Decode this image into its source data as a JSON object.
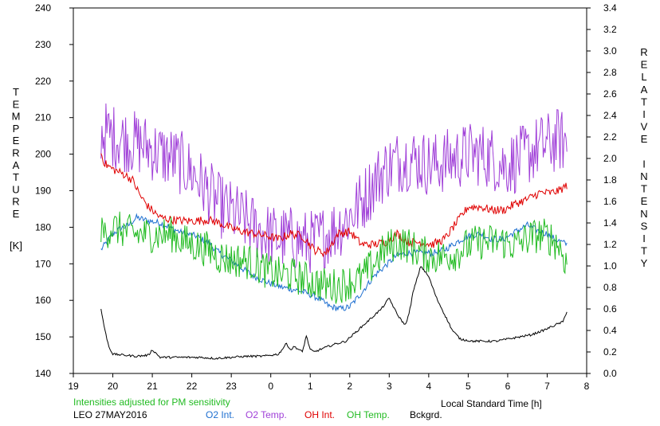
{
  "chart_data": {
    "type": "line",
    "xlabel": "Local Standard Time [h]",
    "ylabel_left_letters": [
      "T",
      "E",
      "M",
      "P",
      "E",
      "R",
      "A",
      "T",
      "U",
      "R",
      "E"
    ],
    "ylabel_left_unit": "[K]",
    "ylabel_right_words": [
      [
        "R",
        "E",
        "L",
        "A",
        "T",
        "I",
        "V",
        "E"
      ],
      [
        "I",
        "N",
        "T",
        "E",
        "N",
        "S",
        "I",
        "T",
        "Y"
      ]
    ],
    "note": "Intensities adjusted for PM sensitivity",
    "station": "LEO 27MAY2016",
    "x_ticks": [
      19,
      20,
      21,
      22,
      23,
      0,
      1,
      2,
      3,
      4,
      5,
      6,
      7,
      8
    ],
    "xlim": [
      19,
      32
    ],
    "ylim_left": [
      140,
      240
    ],
    "ylim_right": [
      0.0,
      3.4
    ],
    "y_ticks_left": [
      140,
      150,
      160,
      170,
      180,
      190,
      200,
      210,
      220,
      230,
      240
    ],
    "y_ticks_right": [
      "0.0",
      "0.2",
      "0.4",
      "0.6",
      "0.8",
      "1.0",
      "1.2",
      "1.4",
      "1.6",
      "1.8",
      "2.0",
      "2.2",
      "2.4",
      "2.6",
      "2.8",
      "3.0",
      "3.2",
      "3.4"
    ],
    "series": [
      {
        "name": "O2 Int.",
        "color": "#1e6fd0",
        "axis": "right",
        "noise": 0.03,
        "x": [
          19.7,
          20.0,
          20.2,
          20.4,
          20.6,
          20.9,
          21.2,
          21.5,
          21.8,
          22.1,
          22.4,
          22.7,
          23.0,
          23.3,
          23.6,
          23.9,
          24.3,
          24.6,
          24.9,
          25.2,
          25.5,
          25.8,
          26.0,
          26.3,
          26.6,
          26.9,
          27.2,
          27.5,
          27.8,
          28.1,
          28.4,
          28.7,
          29.0,
          29.3,
          29.6,
          29.9,
          30.2,
          30.5,
          30.8,
          31.0,
          31.2,
          31.5
        ],
        "y": [
          1.15,
          1.3,
          1.35,
          1.38,
          1.45,
          1.42,
          1.4,
          1.35,
          1.3,
          1.28,
          1.22,
          1.12,
          1.05,
          0.97,
          0.9,
          0.85,
          0.8,
          0.78,
          0.75,
          0.7,
          0.62,
          0.6,
          0.62,
          0.75,
          0.9,
          1.0,
          1.1,
          1.12,
          1.12,
          1.12,
          1.15,
          1.22,
          1.28,
          1.3,
          1.25,
          1.25,
          1.32,
          1.38,
          1.32,
          1.3,
          1.25,
          1.2
        ]
      },
      {
        "name": "O2 Temp.",
        "color": "#a040d8",
        "axis": "left",
        "noise": 9,
        "x": [
          19.7,
          20.0,
          20.3,
          20.6,
          20.9,
          21.2,
          21.5,
          21.8,
          22.1,
          22.4,
          22.7,
          23.0,
          23.3,
          23.6,
          23.9,
          24.2,
          24.5,
          24.8,
          25.1,
          25.4,
          25.7,
          26.0,
          26.3,
          26.6,
          26.9,
          27.2,
          27.5,
          27.8,
          28.1,
          28.4,
          28.7,
          29.0,
          29.3,
          29.6,
          29.9,
          30.2,
          30.5,
          30.8,
          31.1,
          31.3,
          31.5
        ],
        "y": [
          206,
          205,
          204,
          203,
          202,
          200,
          199,
          197,
          194,
          190,
          186,
          184,
          182,
          180,
          178,
          177,
          177,
          176,
          176,
          178,
          180,
          183,
          187,
          192,
          196,
          198,
          199,
          198,
          197,
          198,
          199,
          200,
          200,
          199,
          197,
          198,
          200,
          202,
          203,
          204,
          203
        ]
      },
      {
        "name": "OH Int.",
        "color": "#e00000",
        "axis": "right",
        "noise": 0.04,
        "x": [
          19.7,
          19.8,
          20.0,
          20.3,
          20.5,
          20.7,
          20.9,
          21.2,
          21.5,
          21.8,
          22.1,
          22.4,
          22.7,
          23.0,
          23.3,
          23.6,
          23.9,
          24.2,
          24.5,
          24.8,
          25.1,
          25.4,
          25.7,
          26.0,
          26.3,
          26.6,
          26.9,
          27.2,
          27.5,
          27.8,
          28.1,
          28.4,
          28.7,
          29.0,
          29.3,
          29.6,
          29.9,
          30.2,
          30.5,
          30.8,
          31.1,
          31.3,
          31.5
        ],
        "y": [
          2.05,
          1.95,
          1.9,
          1.85,
          1.8,
          1.65,
          1.55,
          1.45,
          1.43,
          1.42,
          1.42,
          1.43,
          1.4,
          1.35,
          1.32,
          1.3,
          1.28,
          1.25,
          1.3,
          1.28,
          1.15,
          1.12,
          1.3,
          1.32,
          1.2,
          1.2,
          1.22,
          1.3,
          1.22,
          1.22,
          1.2,
          1.25,
          1.4,
          1.55,
          1.55,
          1.52,
          1.52,
          1.58,
          1.62,
          1.68,
          1.68,
          1.7,
          1.75
        ]
      },
      {
        "name": "OH Temp.",
        "color": "#22bb22",
        "axis": "left",
        "noise": 5,
        "x": [
          19.7,
          20.0,
          20.3,
          20.6,
          20.9,
          21.2,
          21.5,
          21.8,
          22.1,
          22.4,
          22.7,
          23.0,
          23.3,
          23.6,
          23.9,
          24.2,
          24.5,
          24.8,
          25.1,
          25.4,
          25.7,
          26.0,
          26.3,
          26.6,
          26.9,
          27.2,
          27.5,
          27.8,
          28.1,
          28.4,
          28.7,
          29.0,
          29.3,
          29.6,
          29.9,
          30.2,
          30.5,
          30.8,
          31.1,
          31.3,
          31.5
        ],
        "y": [
          178,
          180,
          179,
          178,
          178,
          178,
          178,
          176,
          175,
          174,
          172,
          171,
          171,
          170,
          168,
          167,
          167,
          166,
          165,
          164,
          164,
          165,
          166,
          170,
          174,
          176,
          175,
          173,
          172,
          172,
          173,
          175,
          176,
          176,
          176,
          175,
          177,
          178,
          177,
          175,
          170
        ]
      },
      {
        "name": "Bckgrd.",
        "color": "#000000",
        "axis": "right",
        "noise": 0.01,
        "x": [
          19.7,
          19.8,
          19.9,
          20.0,
          20.3,
          20.6,
          20.9,
          21.0,
          21.2,
          21.5,
          21.8,
          22.2,
          22.6,
          23.0,
          23.4,
          23.8,
          24.2,
          24.4,
          24.5,
          24.6,
          24.8,
          24.9,
          25.0,
          25.1,
          25.3,
          25.6,
          25.9,
          26.2,
          26.5,
          26.8,
          27.0,
          27.2,
          27.4,
          27.5,
          27.6,
          27.8,
          28.0,
          28.1,
          28.2,
          28.4,
          28.6,
          28.8,
          29.1,
          29.4,
          29.7,
          30.0,
          30.3,
          30.6,
          30.9,
          31.2,
          31.4,
          31.5
        ],
        "y": [
          0.6,
          0.4,
          0.25,
          0.18,
          0.17,
          0.16,
          0.17,
          0.22,
          0.15,
          0.15,
          0.15,
          0.15,
          0.14,
          0.15,
          0.16,
          0.16,
          0.18,
          0.28,
          0.22,
          0.25,
          0.2,
          0.35,
          0.22,
          0.2,
          0.23,
          0.27,
          0.3,
          0.4,
          0.5,
          0.6,
          0.7,
          0.55,
          0.45,
          0.55,
          0.75,
          1.0,
          0.9,
          0.8,
          0.7,
          0.55,
          0.4,
          0.32,
          0.3,
          0.3,
          0.3,
          0.32,
          0.34,
          0.36,
          0.4,
          0.45,
          0.48,
          0.58
        ]
      }
    ]
  }
}
